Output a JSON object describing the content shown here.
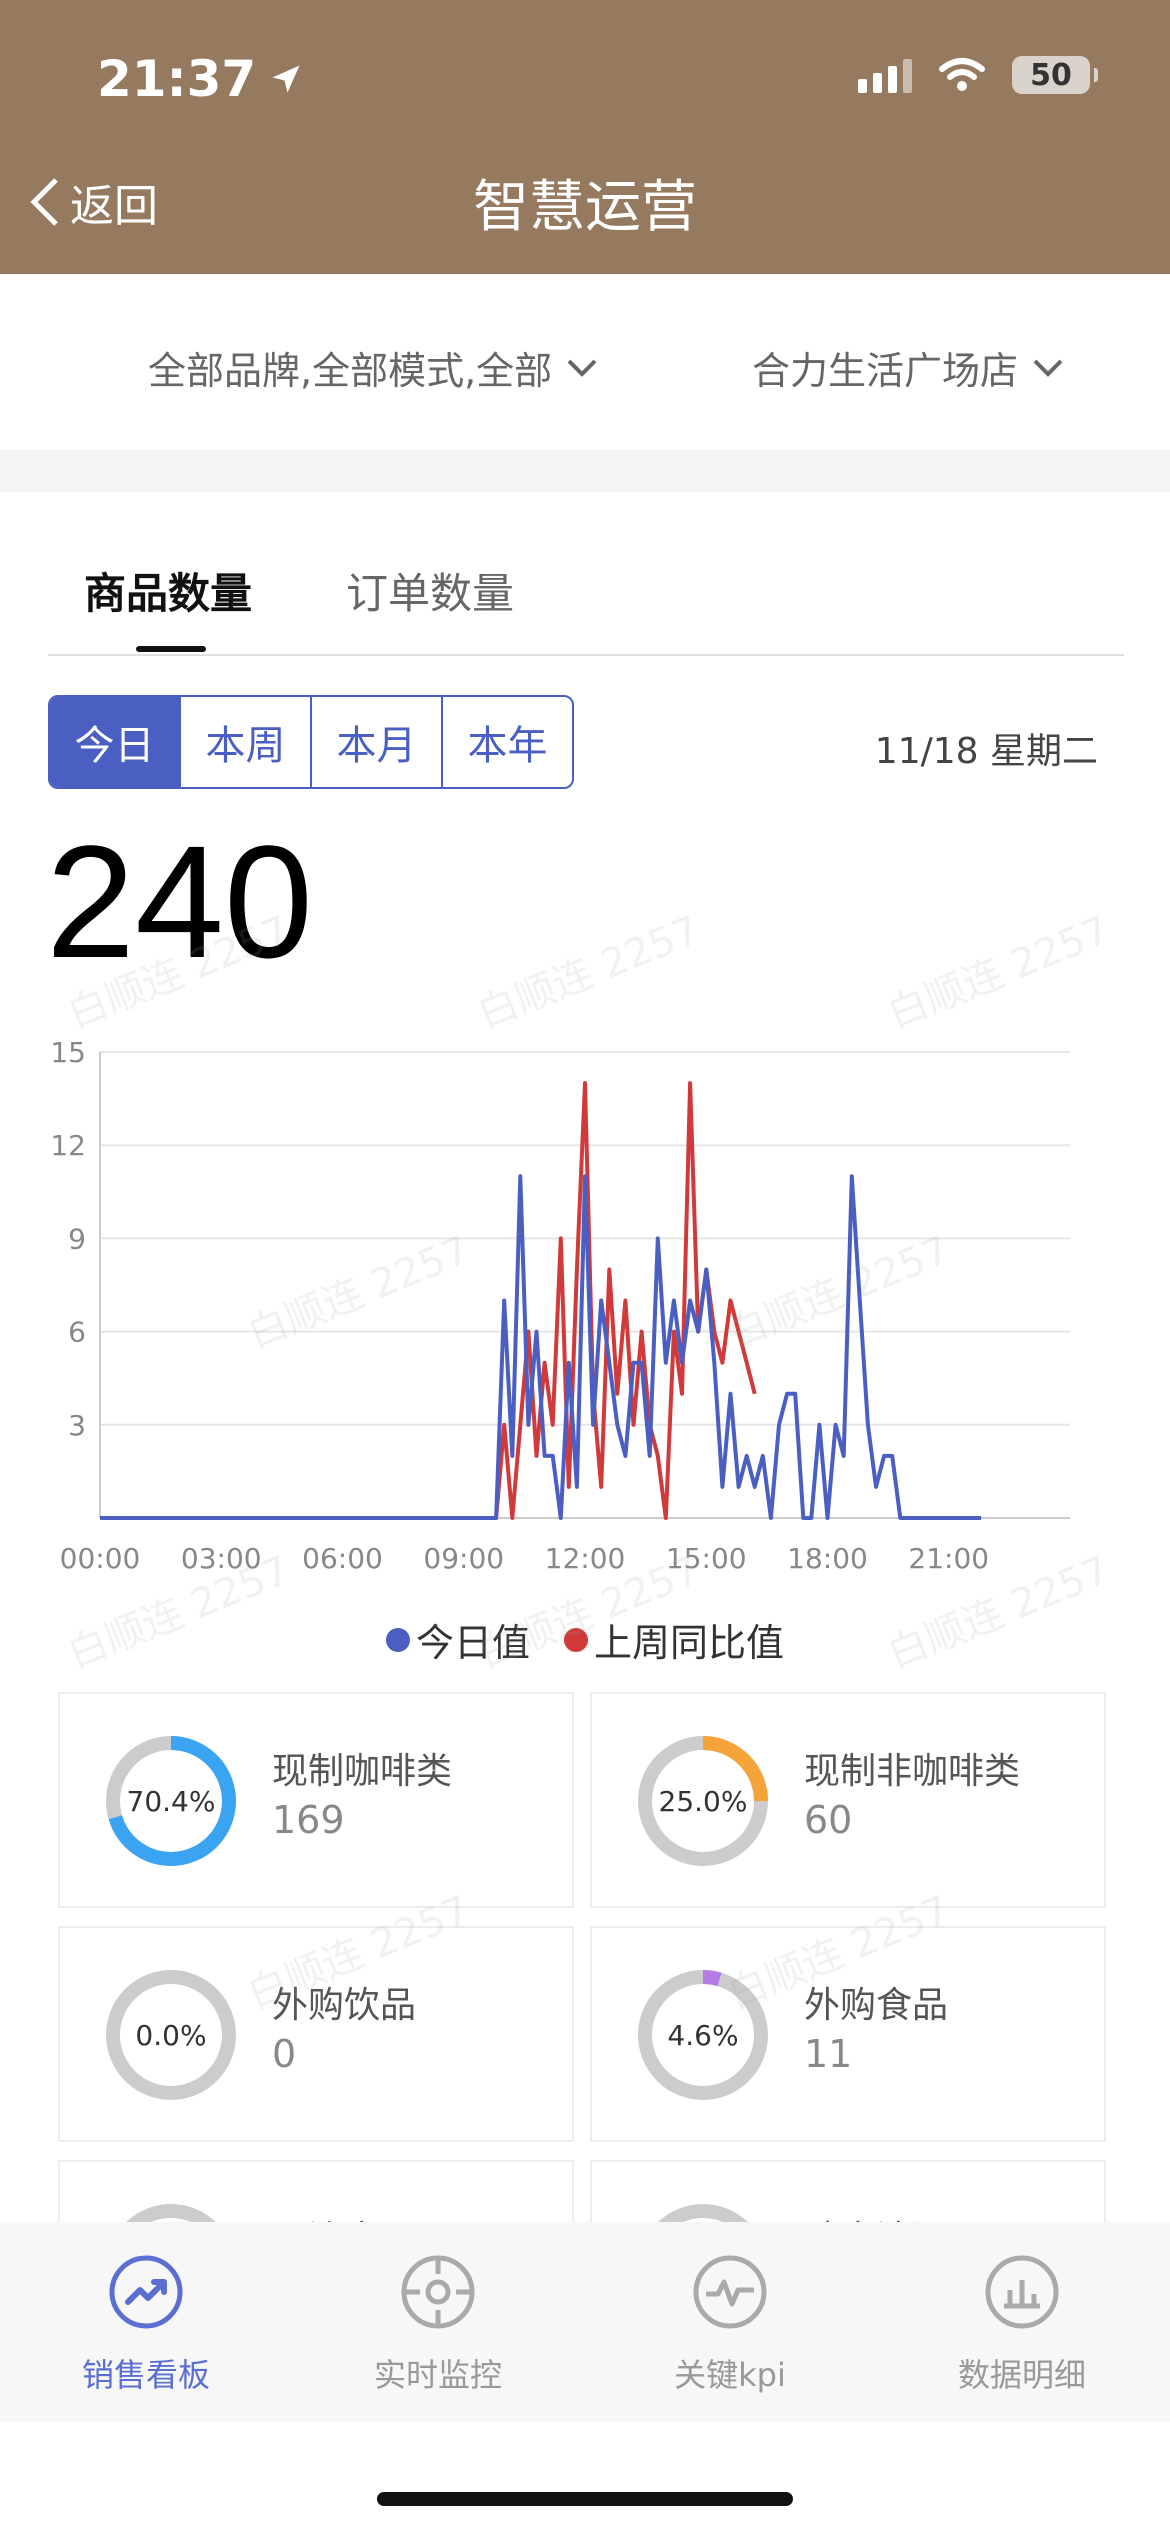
{
  "status_bar": {
    "time": "21:37",
    "battery": "50"
  },
  "nav": {
    "back_label": "返回",
    "title": "智慧运营"
  },
  "filters": {
    "brand_filter": "全部品牌,全部模式,全部",
    "store_filter": "合力生活广场店"
  },
  "tabs": [
    {
      "label": "商品数量",
      "active": true
    },
    {
      "label": "订单数量",
      "active": false
    }
  ],
  "periods": [
    {
      "label": "今日",
      "active": true
    },
    {
      "label": "本周"
    },
    {
      "label": "本月"
    },
    {
      "label": "本年"
    }
  ],
  "date_label": "11/18 星期二",
  "total_value": "240",
  "chart_data": {
    "type": "line",
    "ylim": [
      0,
      15
    ],
    "yticks": [
      "3",
      "6",
      "9",
      "12",
      "15"
    ],
    "xlim": [
      0,
      24
    ],
    "xticks": [
      "00:00",
      "03:00",
      "06:00",
      "09:00",
      "12:00",
      "15:00",
      "18:00",
      "21:00"
    ],
    "grid": true,
    "legend_position": "bottom-center",
    "series": [
      {
        "name": "今日值",
        "color": "#4a5fc1",
        "x": [
          0,
          9.8,
          10.0,
          10.2,
          10.4,
          10.6,
          10.8,
          11.0,
          11.2,
          11.4,
          11.6,
          11.8,
          12.0,
          12.2,
          12.4,
          12.6,
          12.8,
          13.0,
          13.2,
          13.4,
          13.6,
          13.8,
          14.0,
          14.2,
          14.4,
          14.6,
          14.8,
          15.0,
          15.2,
          15.4,
          15.6,
          15.8,
          16.0,
          16.2,
          16.4,
          16.6,
          16.8,
          17.0,
          17.2,
          17.4,
          17.6,
          17.8,
          18.0,
          18.2,
          18.4,
          18.6,
          18.8,
          19.0,
          19.2,
          19.4,
          19.6,
          19.8,
          20.0,
          20.2,
          20.4,
          20.6,
          20.8,
          21.0,
          21.2,
          21.4,
          21.6,
          21.8
        ],
        "values": [
          0,
          0,
          7,
          2,
          11,
          3,
          6,
          2,
          2,
          0,
          5,
          1,
          11,
          3,
          7,
          5,
          3,
          2,
          5,
          5,
          2,
          9,
          5,
          7,
          5,
          7,
          6,
          8,
          5,
          1,
          4,
          1,
          2,
          1,
          2,
          0,
          3,
          4,
          4,
          0,
          0,
          3,
          0,
          3,
          2,
          11,
          7,
          3,
          1,
          2,
          2,
          0,
          0,
          0,
          0,
          0,
          0,
          0,
          0,
          0,
          0,
          0
        ]
      },
      {
        "name": "上周同比值",
        "color": "#d03a3a",
        "x": [
          0,
          9.8,
          10.0,
          10.2,
          10.4,
          10.6,
          10.8,
          11.0,
          11.2,
          11.4,
          11.6,
          11.8,
          12.0,
          12.2,
          12.4,
          12.6,
          12.8,
          13.0,
          13.2,
          13.4,
          13.6,
          13.8,
          14.0,
          14.2,
          14.4,
          14.6,
          14.8,
          15.0,
          15.2,
          15.4,
          15.6,
          15.8,
          16.0,
          16.2
        ],
        "values": [
          0,
          0,
          3,
          0,
          3,
          6,
          2,
          5,
          3,
          9,
          1,
          8,
          14,
          4,
          1,
          8,
          4,
          7,
          3,
          6,
          3,
          2,
          0,
          6,
          4,
          14,
          6,
          8,
          6,
          5,
          7,
          6,
          5,
          4
        ]
      }
    ]
  },
  "categories": [
    {
      "name": "现制咖啡类",
      "value": "169",
      "percent": "70.4%",
      "ratio": 0.704,
      "color": "#3ba4f2"
    },
    {
      "name": "现制非咖啡类",
      "value": "60",
      "percent": "25.0%",
      "ratio": 0.25,
      "color": "#f5a43a"
    },
    {
      "name": "外购饮品",
      "value": "0",
      "percent": "0.0%",
      "ratio": 0.0,
      "color": "#cccccc"
    },
    {
      "name": "外购食品",
      "value": "11",
      "percent": "4.6%",
      "ratio": 0.046,
      "color": "#b57be6"
    },
    {
      "name": "周边商品",
      "value": "",
      "percent": "",
      "ratio": 0,
      "color": "#cccccc"
    },
    {
      "name": "瑞幸洁调",
      "value": "",
      "percent": "",
      "ratio": 0,
      "color": "#cccccc"
    }
  ],
  "bottom_nav": [
    {
      "label": "销售看板",
      "icon": "trend-icon",
      "active": true
    },
    {
      "label": "实时监控",
      "icon": "crosshair-icon"
    },
    {
      "label": "关键kpi",
      "icon": "pulse-icon"
    },
    {
      "label": "数据明细",
      "icon": "bar-chart-icon"
    }
  ],
  "watermark_text": "白顺连 2257"
}
